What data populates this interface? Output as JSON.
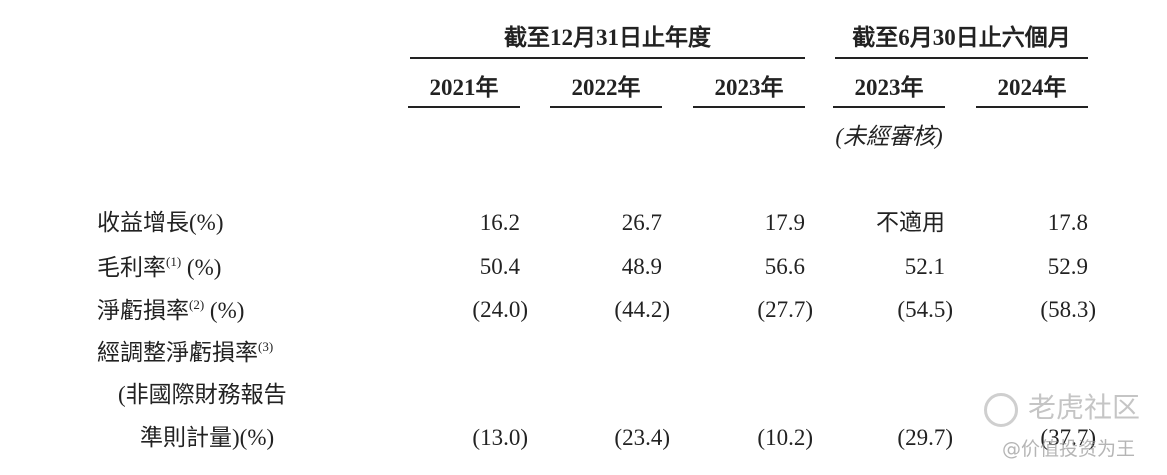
{
  "header": {
    "groups": [
      {
        "label": "截至12月31日止年度"
      },
      {
        "label": "截至6月30日止六個月"
      }
    ],
    "columns": [
      "2021年",
      "2022年",
      "2023年",
      "2023年",
      "2024年"
    ],
    "audit_note": "(未經審核)"
  },
  "rows": [
    {
      "lines": [
        "收益增長(%)"
      ],
      "values": [
        "16.2",
        "26.7",
        "17.9",
        "不適用",
        "17.8"
      ]
    },
    {
      "lines": [
        "毛利率"
      ],
      "note": "(1)",
      "unit": "(%)",
      "values": [
        "50.4",
        "48.9",
        "56.6",
        "52.1",
        "52.9"
      ]
    },
    {
      "lines": [
        "淨虧損率"
      ],
      "note": "(2)",
      "unit": "(%)",
      "values": [
        "(24.0)",
        "(44.2)",
        "(27.7)",
        "(54.5)",
        "(58.3)"
      ]
    },
    {
      "lines": [
        "經調整淨虧損率",
        "(非國際財務報告",
        "準則計量)(%)"
      ],
      "note": "(3)",
      "values": [
        "(13.0)",
        "(23.4)",
        "(10.2)",
        "(29.7)",
        "(37.7)"
      ]
    }
  ],
  "watermark": {
    "logo": "老虎社区",
    "handle": "@价值投资为王"
  }
}
